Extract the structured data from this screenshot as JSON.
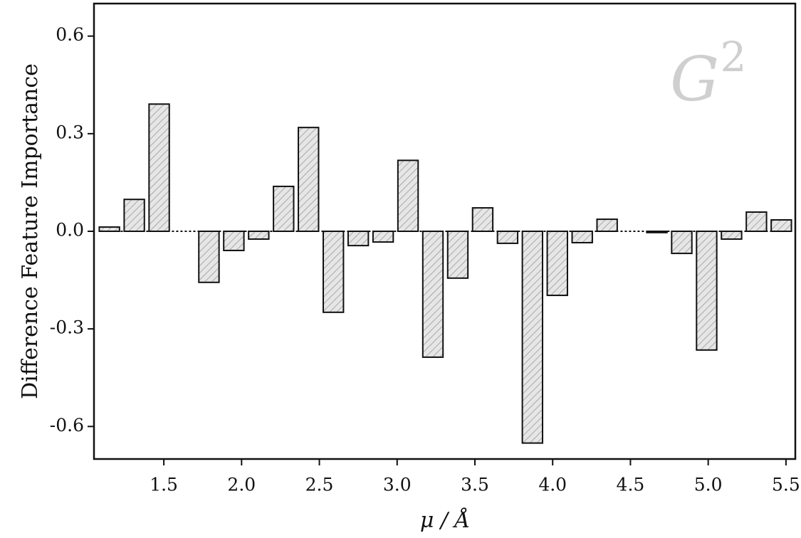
{
  "chart_data": {
    "type": "bar",
    "ylabel": "Difference Feature Importance",
    "xlabel": "μ / Å",
    "annotation": {
      "base": "G",
      "superscript": "2"
    },
    "color": "#d9d9d9",
    "x": [
      1.15,
      1.31,
      1.47,
      1.63,
      1.79,
      1.95,
      2.11,
      2.27,
      2.43,
      2.59,
      2.75,
      2.91,
      3.07,
      3.23,
      3.39,
      3.55,
      3.71,
      3.87,
      4.03,
      4.19,
      4.35,
      4.51,
      4.67,
      4.83,
      4.99,
      5.15,
      5.31,
      5.47
    ],
    "values": [
      0.013,
      0.098,
      0.391,
      0.0,
      -0.157,
      -0.059,
      -0.024,
      0.138,
      0.319,
      -0.249,
      -0.044,
      -0.033,
      0.218,
      -0.387,
      -0.144,
      0.072,
      -0.037,
      -0.651,
      -0.197,
      -0.035,
      0.037,
      0.0,
      -0.004,
      -0.068,
      -0.365,
      -0.024,
      0.059,
      0.035
    ],
    "xlim": [
      1.051,
      5.56
    ],
    "ylim": [
      -0.7,
      0.7
    ],
    "xticks": [
      1.5,
      {
        "value": 2,
        "label": "2.0"
      },
      2.5,
      {
        "value": 3,
        "label": "3.0"
      },
      3.5,
      {
        "value": 4,
        "label": "4.0"
      },
      4.5,
      {
        "value": 5,
        "label": "5.0"
      },
      5.5
    ],
    "yticks": [
      0.6,
      0.3,
      {
        "value": 0,
        "label": "0.0"
      },
      -0.3,
      -0.6
    ],
    "grid": false
  }
}
